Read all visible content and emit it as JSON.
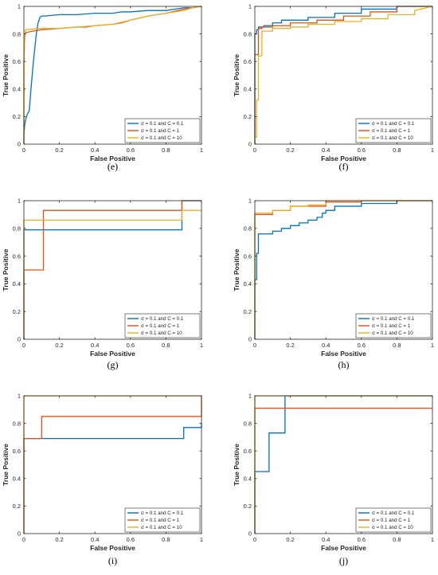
{
  "colors": {
    "blue": "#0072bd",
    "red": "#d95319",
    "yellow": "#edb120"
  },
  "legend_labels": [
    "σ = 0.1 and C = 0.1",
    "σ = 0.1 and C = 1",
    "σ = 0.1 and C = 10"
  ],
  "chart_data": [
    {
      "type": "line",
      "caption": "(e)",
      "xlabel": "False Positive",
      "ylabel": "True Positive",
      "xlim": [
        0,
        1
      ],
      "ylim": [
        0,
        1
      ],
      "xticks": [
        "0",
        "0.2",
        "0.4",
        "0.6",
        "0.8",
        "1"
      ],
      "yticks": [
        "0",
        "0.2",
        "0.4",
        "0.6",
        "0.8",
        "1"
      ],
      "legend": "bottom-right",
      "grid": false,
      "series": [
        {
          "name": "σ = 0.1 and C = 0.1",
          "color": "blue",
          "x": [
            0,
            0,
            0.005,
            0.01,
            0.015,
            0.02,
            0.03,
            0.035,
            0.04,
            0.05,
            0.06,
            0.07,
            0.08,
            0.09,
            0.1,
            0.12,
            0.2,
            0.3,
            0.4,
            0.5,
            0.55,
            0.6,
            0.7,
            0.8,
            0.85,
            0.9,
            0.95,
            1
          ],
          "y": [
            0,
            0.07,
            0.14,
            0.18,
            0.2,
            0.22,
            0.24,
            0.32,
            0.4,
            0.55,
            0.68,
            0.8,
            0.88,
            0.92,
            0.93,
            0.93,
            0.94,
            0.94,
            0.95,
            0.95,
            0.96,
            0.96,
            0.97,
            0.97,
            0.98,
            0.99,
            0.99,
            1
          ]
        },
        {
          "name": "σ = 0.1 and C = 1",
          "color": "red",
          "x": [
            0,
            0,
            0.005,
            0.01,
            0.05,
            0.1,
            0.2,
            0.3,
            0.35,
            0.4,
            0.5,
            0.55,
            0.6,
            0.7,
            0.8,
            0.9,
            1
          ],
          "y": [
            0,
            0.6,
            0.78,
            0.81,
            0.82,
            0.83,
            0.84,
            0.85,
            0.85,
            0.86,
            0.87,
            0.88,
            0.9,
            0.93,
            0.95,
            0.98,
            1
          ]
        },
        {
          "name": "σ = 0.1 and C = 10",
          "color": "yellow",
          "x": [
            0,
            0,
            0.005,
            0.01,
            0.05,
            0.1,
            0.2,
            0.3,
            0.4,
            0.5,
            0.6,
            0.7,
            0.8,
            0.9,
            0.95,
            1
          ],
          "y": [
            0,
            0.55,
            0.8,
            0.83,
            0.835,
            0.84,
            0.84,
            0.85,
            0.86,
            0.87,
            0.9,
            0.93,
            0.95,
            0.97,
            0.99,
            1
          ]
        }
      ]
    },
    {
      "type": "line",
      "caption": "(f)",
      "xlabel": "False Positive",
      "ylabel": "True Positive",
      "xlim": [
        0,
        1
      ],
      "ylim": [
        0,
        1
      ],
      "xticks": [
        "0",
        "0.2",
        "0.4",
        "0.6",
        "0.8",
        "1"
      ],
      "yticks": [
        "0",
        "0.2",
        "0.4",
        "0.6",
        "0.8",
        "1"
      ],
      "legend": "bottom-right",
      "grid": false,
      "series": [
        {
          "name": "σ = 0.1 and C = 0.1",
          "color": "blue",
          "x": [
            0,
            0,
            0.01,
            0.01,
            0.02,
            0.02,
            0.05,
            0.05,
            0.1,
            0.1,
            0.15,
            0.15,
            0.3,
            0.3,
            0.45,
            0.45,
            0.6,
            0.6,
            0.8,
            0.8,
            1
          ],
          "y": [
            0,
            0.8,
            0.8,
            0.83,
            0.83,
            0.85,
            0.85,
            0.86,
            0.86,
            0.88,
            0.88,
            0.9,
            0.9,
            0.92,
            0.92,
            0.95,
            0.95,
            0.98,
            0.98,
            1,
            1
          ]
        },
        {
          "name": "σ = 0.1 and C = 1",
          "color": "red",
          "x": [
            0,
            0,
            0.02,
            0.02,
            0.04,
            0.04,
            0.1,
            0.1,
            0.2,
            0.2,
            0.35,
            0.35,
            0.5,
            0.5,
            0.65,
            0.65,
            0.8,
            0.8,
            1
          ],
          "y": [
            0,
            0.65,
            0.65,
            0.84,
            0.84,
            0.85,
            0.85,
            0.86,
            0.86,
            0.88,
            0.88,
            0.9,
            0.9,
            0.93,
            0.93,
            0.96,
            0.96,
            1,
            1
          ]
        },
        {
          "name": "σ = 0.1 and C = 10",
          "color": "yellow",
          "x": [
            0,
            0,
            0.01,
            0.01,
            0.02,
            0.02,
            0.04,
            0.04,
            0.1,
            0.1,
            0.2,
            0.2,
            0.3,
            0.3,
            0.45,
            0.45,
            0.6,
            0.6,
            0.75,
            0.75,
            0.9,
            0.9,
            1
          ],
          "y": [
            0,
            0.05,
            0.05,
            0.32,
            0.32,
            0.64,
            0.64,
            0.82,
            0.82,
            0.84,
            0.84,
            0.85,
            0.85,
            0.87,
            0.87,
            0.89,
            0.89,
            0.91,
            0.91,
            0.94,
            0.94,
            0.97,
            1
          ]
        }
      ]
    },
    {
      "type": "line",
      "caption": "(g)",
      "xlabel": "False Positive",
      "ylabel": "True Positive",
      "xlim": [
        0,
        1
      ],
      "ylim": [
        0,
        1
      ],
      "xticks": [
        "0",
        "0.2",
        "0.4",
        "0.6",
        "0.8",
        "1"
      ],
      "yticks": [
        "0",
        "0.2",
        "0.4",
        "0.6",
        "0.8",
        "1"
      ],
      "legend": "bottom-right",
      "grid": false,
      "series": [
        {
          "name": "σ = 0.1 and C = 0.1",
          "color": "blue",
          "x": [
            0,
            0,
            0.11,
            0.11,
            0.89,
            0.89,
            1
          ],
          "y": [
            0,
            0.79,
            0.79,
            0.79,
            0.79,
            1,
            1
          ]
        },
        {
          "name": "σ = 0.1 and C = 1",
          "color": "red",
          "x": [
            0,
            0,
            0.11,
            0.11,
            0.89,
            0.89,
            1
          ],
          "y": [
            0,
            0.5,
            0.5,
            0.93,
            0.93,
            1,
            1
          ]
        },
        {
          "name": "σ = 0.1 and C = 10",
          "color": "yellow",
          "x": [
            0,
            0,
            0.89,
            0.89,
            1
          ],
          "y": [
            0,
            0.86,
            0.86,
            0.93,
            0.93
          ]
        }
      ]
    },
    {
      "type": "line",
      "caption": "(h)",
      "xlabel": "False Positive",
      "ylabel": "True Positive",
      "xlim": [
        0,
        1
      ],
      "ylim": [
        0,
        1
      ],
      "xticks": [
        "0",
        "0.2",
        "0.4",
        "0.6",
        "0.8",
        "1"
      ],
      "yticks": [
        "0",
        "0.2",
        "0.4",
        "0.6",
        "0.8",
        "1"
      ],
      "legend": "bottom-right",
      "grid": false,
      "series": [
        {
          "name": "σ = 0.1 and C = 0.1",
          "color": "blue",
          "x": [
            0,
            0,
            0.01,
            0.01,
            0.02,
            0.02,
            0.1,
            0.1,
            0.15,
            0.15,
            0.2,
            0.2,
            0.25,
            0.25,
            0.3,
            0.3,
            0.35,
            0.35,
            0.38,
            0.38,
            0.4,
            0.4,
            0.45,
            0.45,
            0.6,
            0.6,
            0.8,
            0.8,
            1
          ],
          "y": [
            0,
            0.43,
            0.43,
            0.62,
            0.62,
            0.76,
            0.76,
            0.78,
            0.78,
            0.8,
            0.8,
            0.82,
            0.82,
            0.84,
            0.84,
            0.86,
            0.86,
            0.88,
            0.88,
            0.91,
            0.91,
            0.93,
            0.93,
            0.96,
            0.96,
            0.98,
            0.98,
            1,
            1
          ]
        },
        {
          "name": "σ = 0.1 and C = 1",
          "color": "red",
          "x": [
            0,
            0,
            0.1,
            0.1,
            0.2,
            0.2,
            0.4,
            0.4,
            0.6,
            0.6,
            1
          ],
          "y": [
            0,
            0.9,
            0.9,
            0.93,
            0.93,
            0.96,
            0.96,
            0.99,
            0.99,
            1,
            1
          ]
        },
        {
          "name": "σ = 0.1 and C = 10",
          "color": "yellow",
          "x": [
            0,
            0,
            0.1,
            0.1,
            0.2,
            0.2,
            0.3,
            0.3,
            0.4,
            0.4,
            1
          ],
          "y": [
            0,
            0.91,
            0.91,
            0.93,
            0.93,
            0.96,
            0.96,
            0.97,
            0.97,
            1,
            1
          ]
        }
      ]
    },
    {
      "type": "line",
      "caption": "(i)",
      "xlabel": "False Positive",
      "ylabel": "True Positive",
      "xlim": [
        0,
        1
      ],
      "ylim": [
        0,
        1
      ],
      "xticks": [
        "0",
        "0.2",
        "0.4",
        "0.6",
        "0.8",
        "1"
      ],
      "yticks": [
        "0",
        "0.2",
        "0.4",
        "0.6",
        "0.8",
        "1"
      ],
      "legend": "bottom-right",
      "grid": false,
      "series": [
        {
          "name": "σ = 0.1 and C = 0.1",
          "color": "blue",
          "x": [
            0,
            0,
            0.9,
            0.9,
            1,
            1
          ],
          "y": [
            0,
            0.69,
            0.69,
            0.77,
            0.77,
            0.8
          ]
        },
        {
          "name": "σ = 0.1 and C = 1",
          "color": "red",
          "x": [
            0,
            0,
            0.1,
            0.1,
            1,
            1
          ],
          "y": [
            0,
            0.69,
            0.69,
            0.85,
            0.85,
            1
          ]
        },
        {
          "name": "σ = 0.1 and C = 10",
          "color": "yellow",
          "x": [
            0,
            0,
            1,
            1
          ],
          "y": [
            0,
            1,
            1,
            1
          ]
        }
      ]
    },
    {
      "type": "line",
      "caption": "(j)",
      "xlabel": "False Positive",
      "ylabel": "True Positive",
      "xlim": [
        0,
        1
      ],
      "ylim": [
        0,
        1
      ],
      "xticks": [
        "0",
        "0.2",
        "0.4",
        "0.6",
        "0.8",
        "1"
      ],
      "yticks": [
        "0",
        "0.2",
        "0.4",
        "0.6",
        "0.8",
        "1"
      ],
      "legend": "bottom-right",
      "grid": false,
      "series": [
        {
          "name": "σ = 0.1 and C = 0.1",
          "color": "blue",
          "x": [
            0,
            0,
            0.08,
            0.08,
            0.17,
            0.17,
            1
          ],
          "y": [
            0,
            0.45,
            0.45,
            0.73,
            0.73,
            1,
            1
          ]
        },
        {
          "name": "σ = 0.1 and C = 1",
          "color": "red",
          "x": [
            0,
            0,
            1
          ],
          "y": [
            0,
            0.91,
            0.91
          ]
        },
        {
          "name": "σ = 0.1 and C = 10",
          "color": "yellow",
          "x": [
            0,
            0,
            1
          ],
          "y": [
            0,
            1,
            1
          ]
        }
      ]
    }
  ]
}
